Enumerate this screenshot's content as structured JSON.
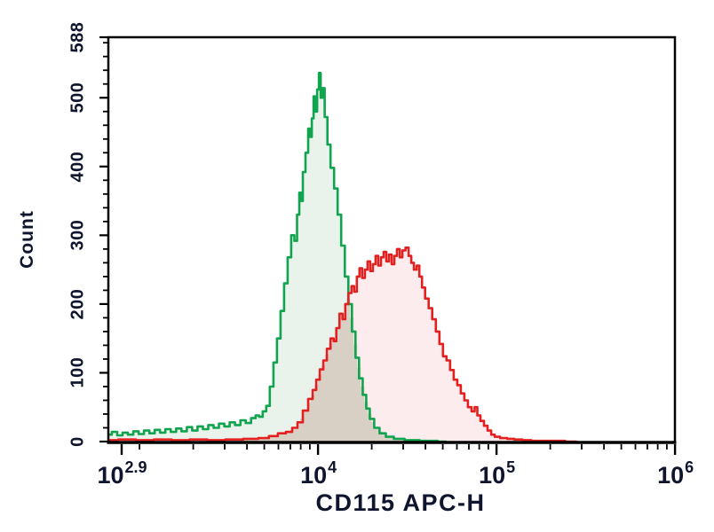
{
  "chart_data": {
    "type": "area",
    "subtype": "flow-cytometry-overlay-histogram",
    "title": "",
    "xlabel": "CD115 APC-H",
    "ylabel": "Count",
    "x_scale": "log10",
    "xlim_log10": [
      2.83,
      6
    ],
    "ylim": [
      0,
      588
    ],
    "grid": false,
    "legend": false,
    "x_tick_base": "10",
    "x_major_ticks": [
      {
        "exp": "2.9",
        "log10": 2.9
      },
      {
        "exp": "4",
        "log10": 4
      },
      {
        "exp": "5",
        "log10": 5
      },
      {
        "exp": "6",
        "log10": 6
      }
    ],
    "x_minor_decades": [
      3,
      4,
      5
    ],
    "y_major_ticks": [
      {
        "label": "0",
        "value": 0
      },
      {
        "label": "100",
        "value": 100
      },
      {
        "label": "200",
        "value": 200
      },
      {
        "label": "300",
        "value": 300
      },
      {
        "label": "400",
        "value": 400
      },
      {
        "label": "500",
        "value": 500
      },
      {
        "label": "588",
        "value": 588
      }
    ],
    "y_minor_step": 20,
    "axis_color": "#000000",
    "text_color": "#10152e",
    "overlap_fill": "#d8d0c4",
    "series": [
      {
        "name": "green-histogram",
        "stroke": "#11a44e",
        "fill": "#e9f3ec",
        "points": [
          [
            2.83,
            10
          ],
          [
            2.86,
            14
          ],
          [
            2.89,
            9
          ],
          [
            2.92,
            13
          ],
          [
            2.95,
            10
          ],
          [
            2.98,
            15
          ],
          [
            3.01,
            11
          ],
          [
            3.04,
            16
          ],
          [
            3.07,
            12
          ],
          [
            3.1,
            17
          ],
          [
            3.13,
            13
          ],
          [
            3.16,
            18
          ],
          [
            3.19,
            14
          ],
          [
            3.22,
            19
          ],
          [
            3.25,
            15
          ],
          [
            3.28,
            21
          ],
          [
            3.31,
            16
          ],
          [
            3.34,
            22
          ],
          [
            3.37,
            18
          ],
          [
            3.4,
            24
          ],
          [
            3.43,
            20
          ],
          [
            3.46,
            26
          ],
          [
            3.49,
            22
          ],
          [
            3.52,
            28
          ],
          [
            3.55,
            24
          ],
          [
            3.58,
            31
          ],
          [
            3.61,
            27
          ],
          [
            3.64,
            34
          ],
          [
            3.66,
            38
          ],
          [
            3.68,
            36
          ],
          [
            3.7,
            44
          ],
          [
            3.72,
            52
          ],
          [
            3.74,
            80
          ],
          [
            3.76,
            115
          ],
          [
            3.78,
            150
          ],
          [
            3.8,
            190
          ],
          [
            3.82,
            230
          ],
          [
            3.84,
            268
          ],
          [
            3.86,
            300
          ],
          [
            3.875,
            292
          ],
          [
            3.89,
            330
          ],
          [
            3.9,
            362
          ],
          [
            3.91,
            350
          ],
          [
            3.92,
            392
          ],
          [
            3.94,
            420
          ],
          [
            3.95,
            455
          ],
          [
            3.96,
            443
          ],
          [
            3.97,
            470
          ],
          [
            3.98,
            502
          ],
          [
            3.99,
            480
          ],
          [
            4.0,
            512
          ],
          [
            4.01,
            536
          ],
          [
            4.02,
            500
          ],
          [
            4.03,
            514
          ],
          [
            4.045,
            472
          ],
          [
            4.06,
            432
          ],
          [
            4.08,
            398
          ],
          [
            4.1,
            368
          ],
          [
            4.12,
            330
          ],
          [
            4.14,
            285
          ],
          [
            4.16,
            240
          ],
          [
            4.18,
            200
          ],
          [
            4.2,
            160
          ],
          [
            4.22,
            122
          ],
          [
            4.24,
            92
          ],
          [
            4.26,
            68
          ],
          [
            4.28,
            48
          ],
          [
            4.3,
            33
          ],
          [
            4.33,
            20
          ],
          [
            4.36,
            12
          ],
          [
            4.4,
            7
          ],
          [
            4.45,
            4
          ],
          [
            4.52,
            2
          ],
          [
            4.62,
            1
          ],
          [
            4.72,
            0
          ]
        ]
      },
      {
        "name": "red-histogram",
        "stroke": "#e32020",
        "fill": "#fdecee",
        "points": [
          [
            2.83,
            2
          ],
          [
            2.93,
            3
          ],
          [
            3.03,
            2
          ],
          [
            3.13,
            3
          ],
          [
            3.23,
            2
          ],
          [
            3.33,
            3
          ],
          [
            3.43,
            2
          ],
          [
            3.53,
            3
          ],
          [
            3.63,
            4
          ],
          [
            3.7,
            5
          ],
          [
            3.75,
            8
          ],
          [
            3.8,
            12
          ],
          [
            3.84,
            14
          ],
          [
            3.87,
            20
          ],
          [
            3.9,
            28
          ],
          [
            3.93,
            45
          ],
          [
            3.96,
            62
          ],
          [
            3.98,
            75
          ],
          [
            4.0,
            90
          ],
          [
            4.02,
            105
          ],
          [
            4.04,
            118
          ],
          [
            4.06,
            135
          ],
          [
            4.08,
            150
          ],
          [
            4.095,
            146
          ],
          [
            4.11,
            165
          ],
          [
            4.13,
            186
          ],
          [
            4.145,
            178
          ],
          [
            4.16,
            200
          ],
          [
            4.18,
            216
          ],
          [
            4.195,
            226
          ],
          [
            4.21,
            218
          ],
          [
            4.225,
            240
          ],
          [
            4.24,
            252
          ],
          [
            4.255,
            238
          ],
          [
            4.27,
            250
          ],
          [
            4.285,
            262
          ],
          [
            4.3,
            248
          ],
          [
            4.315,
            258
          ],
          [
            4.33,
            270
          ],
          [
            4.345,
            256
          ],
          [
            4.36,
            268
          ],
          [
            4.375,
            276
          ],
          [
            4.39,
            262
          ],
          [
            4.405,
            272
          ],
          [
            4.42,
            258
          ],
          [
            4.435,
            270
          ],
          [
            4.45,
            280
          ],
          [
            4.465,
            268
          ],
          [
            4.48,
            278
          ],
          [
            4.5,
            282
          ],
          [
            4.515,
            270
          ],
          [
            4.53,
            260
          ],
          [
            4.545,
            250
          ],
          [
            4.56,
            256
          ],
          [
            4.575,
            240
          ],
          [
            4.59,
            224
          ],
          [
            4.61,
            208
          ],
          [
            4.63,
            194
          ],
          [
            4.65,
            178
          ],
          [
            4.67,
            160
          ],
          [
            4.69,
            142
          ],
          [
            4.71,
            124
          ],
          [
            4.73,
            118
          ],
          [
            4.75,
            104
          ],
          [
            4.77,
            90
          ],
          [
            4.79,
            82
          ],
          [
            4.81,
            70
          ],
          [
            4.83,
            60
          ],
          [
            4.85,
            50
          ],
          [
            4.87,
            44
          ],
          [
            4.885,
            50
          ],
          [
            4.9,
            38
          ],
          [
            4.92,
            30
          ],
          [
            4.94,
            23
          ],
          [
            4.96,
            16
          ],
          [
            4.98,
            10
          ],
          [
            5.0,
            7
          ],
          [
            5.04,
            5
          ],
          [
            5.08,
            4
          ],
          [
            5.12,
            3
          ],
          [
            5.17,
            2
          ],
          [
            5.22,
            1
          ],
          [
            5.32,
            1
          ],
          [
            5.45,
            0
          ]
        ]
      }
    ]
  }
}
